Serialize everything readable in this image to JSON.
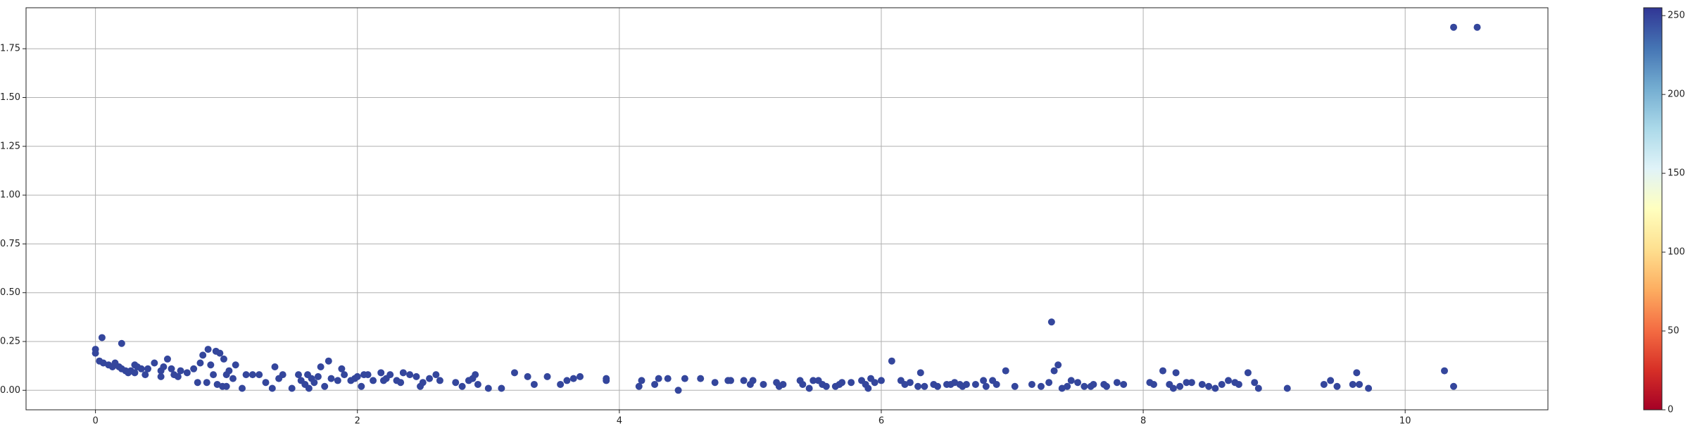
{
  "chart_data": {
    "type": "scatter",
    "color": "#34469c",
    "xlim": [
      -0.53,
      11.09
    ],
    "ylim": [
      -0.1,
      1.96
    ],
    "xticks": [
      0,
      2,
      4,
      6,
      8,
      10
    ],
    "yticks": [
      {
        "value": 0,
        "label": "0.00"
      },
      0.25,
      {
        "value": 0.5,
        "label": "0.50"
      },
      0.75,
      {
        "value": 1,
        "label": "1.00"
      },
      1.25,
      {
        "value": 1.5,
        "label": "1.50"
      },
      1.75
    ],
    "grid": true,
    "colorbar": {
      "lim": [
        0,
        255
      ],
      "ticks": [
        0,
        50,
        100,
        150,
        200,
        250
      ],
      "colors": [
        "#a50026",
        "#d73027",
        "#f46d43",
        "#fdae61",
        "#fee090",
        "#ffffbf",
        "#e0f3f8",
        "#abd9e9",
        "#74add1",
        "#4575b4",
        "#313695"
      ]
    },
    "x": [
      0,
      0,
      0.03,
      0.05,
      0.06,
      0.1,
      0.13,
      0.15,
      0.18,
      0.2,
      0.2,
      0.23,
      0.25,
      0.27,
      0.3,
      0.3,
      0.32,
      0.35,
      0.38,
      0.4,
      0.45,
      0.5,
      0.5,
      0.52,
      0.55,
      0.58,
      0.6,
      0.63,
      0.65,
      0.7,
      0.75,
      0.78,
      0.8,
      0.82,
      0.85,
      0.86,
      0.88,
      0.9,
      0.92,
      0.93,
      0.95,
      0.97,
      0.98,
      1.0,
      1.0,
      1.02,
      1.05,
      1.07,
      1.12,
      1.15,
      1.2,
      1.25,
      1.3,
      1.35,
      1.37,
      1.4,
      1.43,
      1.5,
      1.55,
      1.57,
      1.6,
      1.62,
      1.63,
      1.65,
      1.67,
      1.7,
      1.72,
      1.75,
      1.78,
      1.8,
      1.85,
      1.88,
      1.9,
      1.95,
      1.98,
      2.0,
      2.03,
      2.05,
      2.08,
      2.12,
      2.18,
      2.2,
      2.22,
      2.25,
      2.3,
      2.33,
      2.35,
      2.4,
      2.45,
      2.48,
      2.5,
      2.55,
      2.6,
      2.63,
      2.75,
      2.8,
      2.85,
      2.88,
      2.9,
      2.92,
      3.0,
      3.1,
      3.2,
      3.3,
      3.35,
      3.45,
      3.55,
      3.6,
      3.65,
      3.7,
      3.9,
      3.9,
      4.15,
      4.17,
      4.27,
      4.3,
      4.37,
      4.45,
      4.5,
      4.62,
      4.73,
      4.83,
      4.85,
      4.95,
      5.0,
      5.02,
      5.1,
      5.2,
      5.22,
      5.25,
      5.38,
      5.4,
      5.45,
      5.48,
      5.52,
      5.55,
      5.58,
      5.65,
      5.68,
      5.7,
      5.77,
      5.85,
      5.88,
      5.9,
      5.92,
      5.95,
      6.0,
      6.08,
      6.15,
      6.18,
      6.22,
      6.28,
      6.3,
      6.33,
      6.4,
      6.43,
      6.5,
      6.53,
      6.56,
      6.6,
      6.62,
      6.65,
      6.72,
      6.78,
      6.8,
      6.85,
      6.88,
      6.95,
      7.02,
      7.15,
      7.22,
      7.28,
      7.3,
      7.32,
      7.35,
      7.38,
      7.42,
      7.45,
      7.5,
      7.55,
      7.6,
      7.62,
      7.7,
      7.72,
      7.8,
      7.85,
      8.05,
      8.08,
      8.15,
      8.2,
      8.23,
      8.25,
      8.28,
      8.33,
      8.37,
      8.45,
      8.5,
      8.55,
      8.6,
      8.65,
      8.7,
      8.73,
      8.8,
      8.85,
      8.88,
      9.1,
      9.38,
      9.43,
      9.48,
      9.6,
      9.63,
      9.65,
      9.72,
      10.3,
      10.37,
      10.37,
      10.55
    ],
    "values": [
      0.21,
      0.19,
      0.15,
      0.27,
      0.14,
      0.13,
      0.12,
      0.14,
      0.12,
      0.11,
      0.24,
      0.1,
      0.09,
      0.1,
      0.13,
      0.09,
      0.12,
      0.11,
      0.08,
      0.11,
      0.14,
      0.1,
      0.07,
      0.12,
      0.16,
      0.11,
      0.08,
      0.07,
      0.1,
      0.09,
      0.11,
      0.04,
      0.14,
      0.18,
      0.04,
      0.21,
      0.13,
      0.08,
      0.2,
      0.03,
      0.19,
      0.02,
      0.16,
      0.02,
      0.08,
      0.1,
      0.06,
      0.13,
      0.01,
      0.08,
      0.08,
      0.08,
      0.04,
      0.01,
      0.12,
      0.06,
      0.08,
      0.01,
      0.08,
      0.05,
      0.03,
      0.08,
      0.01,
      0.06,
      0.04,
      0.07,
      0.12,
      0.02,
      0.15,
      0.06,
      0.05,
      0.11,
      0.08,
      0.05,
      0.06,
      0.07,
      0.02,
      0.08,
      0.08,
      0.05,
      0.09,
      0.05,
      0.06,
      0.08,
      0.05,
      0.04,
      0.09,
      0.08,
      0.07,
      0.02,
      0.04,
      0.06,
      0.08,
      0.05,
      0.04,
      0.02,
      0.05,
      0.06,
      0.08,
      0.03,
      0.01,
      0.01,
      0.09,
      0.07,
      0.03,
      0.07,
      0.03,
      0.05,
      0.06,
      0.07,
      0.05,
      0.06,
      0.02,
      0.05,
      0.03,
      0.06,
      0.06,
      0.0,
      0.06,
      0.06,
      0.04,
      0.05,
      0.05,
      0.05,
      0.03,
      0.05,
      0.03,
      0.04,
      0.02,
      0.03,
      0.05,
      0.03,
      0.01,
      0.05,
      0.05,
      0.03,
      0.02,
      0.02,
      0.03,
      0.04,
      0.04,
      0.05,
      0.03,
      0.01,
      0.06,
      0.04,
      0.05,
      0.15,
      0.05,
      0.03,
      0.04,
      0.02,
      0.09,
      0.02,
      0.03,
      0.02,
      0.03,
      0.03,
      0.04,
      0.03,
      0.02,
      0.03,
      0.03,
      0.05,
      0.02,
      0.05,
      0.03,
      0.1,
      0.02,
      0.03,
      0.02,
      0.04,
      0.35,
      0.1,
      0.13,
      0.01,
      0.02,
      0.05,
      0.04,
      0.02,
      0.02,
      0.03,
      0.03,
      0.02,
      0.04,
      0.03,
      0.04,
      0.03,
      0.1,
      0.03,
      0.01,
      0.09,
      0.02,
      0.04,
      0.04,
      0.03,
      0.02,
      0.01,
      0.03,
      0.05,
      0.04,
      0.03,
      0.09,
      0.04,
      0.01,
      0.01,
      0.03,
      0.05,
      0.02,
      0.03,
      0.09,
      0.03,
      0.01,
      0.1,
      0.02,
      1.86,
      1.86
    ]
  }
}
